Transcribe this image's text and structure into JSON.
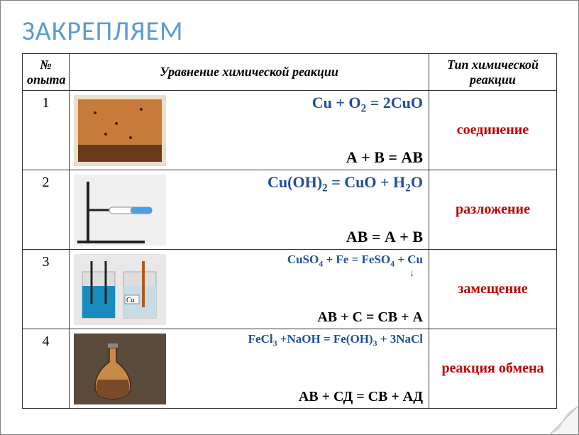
{
  "title": "ЗАКРЕПЛЯЕМ",
  "headers": {
    "num": "№ опыта",
    "eq": "Уравнение химической реакции",
    "type": "Тип химической реакции"
  },
  "rows": [
    {
      "n": "1",
      "chem_html": "Cu + O<sub>2</sub> = 2CuO",
      "gen": "А  + В = АВ",
      "type": "соединение"
    },
    {
      "n": "2",
      "chem_html": "Cu(OH)<sub>2</sub> = CuO + H<sub>2</sub>O",
      "gen": "АВ  = А + В",
      "type": "разложение"
    },
    {
      "n": "3",
      "chem_html": "CuSO<sub>4</sub> + Fe = FeSO<sub>4</sub> + Cu",
      "gen": "АВ + С = СВ + А",
      "type": "замещение"
    },
    {
      "n": "4",
      "chem_html": "FeCl<sub>3</sub> +NaOH = Fe(OH)<sub>3</sub> + 3NaCl",
      "gen": "АВ + СД = СВ + АД",
      "type": "реакция обмена"
    }
  ],
  "colors": {
    "title": "#5b9bd5",
    "chem": "#1f4e99",
    "type": "#c00000",
    "border": "#333333"
  },
  "thumbs": {
    "t1": {
      "bg": "#c87a3a",
      "dark": "#6b3a1a",
      "frame": "#e8e0c8"
    },
    "t2": {
      "bg": "#f0f0f0",
      "tube": "#4aa0e0",
      "stand": "#222"
    },
    "t3": {
      "bg": "#e8e8e8",
      "sol": "#1a8bbf",
      "cu": "#b05a1a",
      "label_bg": "#fff"
    },
    "t4": {
      "bg": "#5a4a3a",
      "flask": "#c88a4a",
      "liq": "#7a4a2a"
    }
  }
}
